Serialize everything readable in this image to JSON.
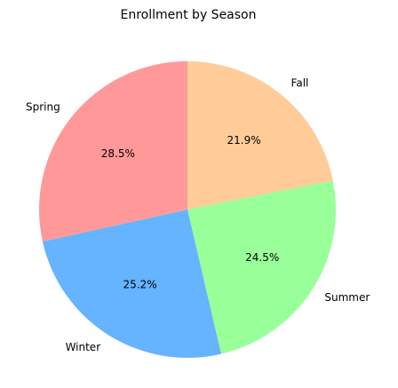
{
  "chart_data": {
    "type": "pie",
    "title": "Enrollment by Season",
    "categories": [
      "Fall",
      "Summer",
      "Winter",
      "Spring"
    ],
    "values": [
      21.9,
      24.5,
      25.2,
      28.5
    ],
    "percent_labels": [
      "21.9%",
      "24.5%",
      "25.2%",
      "28.5%"
    ],
    "colors": [
      "#ffcc99",
      "#99ff99",
      "#66b3ff",
      "#ff9999"
    ],
    "start_angle": "top (90°)",
    "direction": "clockwise",
    "legend": "none",
    "grid": false
  }
}
